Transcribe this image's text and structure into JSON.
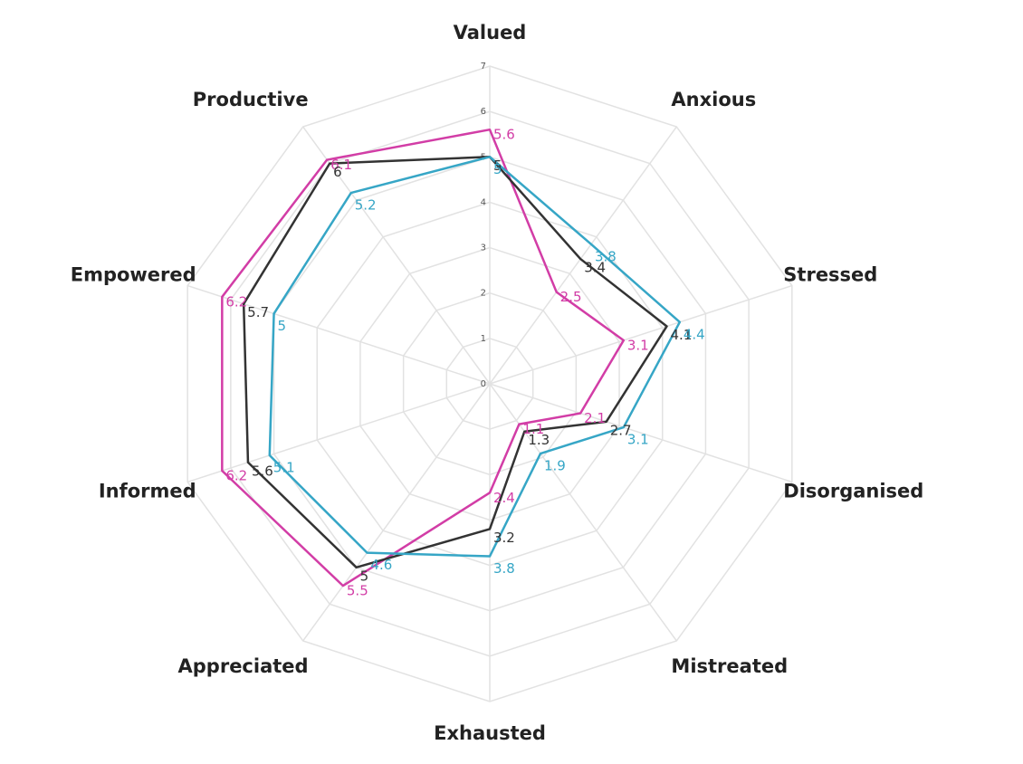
{
  "chart_data": {
    "type": "radar",
    "categories": [
      "Valued",
      "Anxious",
      "Stressed",
      "Disorganised",
      "Mistreated",
      "Exhausted",
      "Appreciated",
      "Informed",
      "Empowered",
      "Productive"
    ],
    "series": [
      {
        "color": "#d23da6",
        "values": [
          5.6,
          2.5,
          3.1,
          2.1,
          1.1,
          2.4,
          5.5,
          6.2,
          6.2,
          6.1
        ]
      },
      {
        "color": "#333333",
        "values": [
          5,
          3.4,
          4.1,
          2.7,
          1.3,
          3.2,
          5,
          5.6,
          5.7,
          6
        ]
      },
      {
        "color": "#36a6c6",
        "values": [
          5,
          3.8,
          4.4,
          3.1,
          1.9,
          3.8,
          4.6,
          5.1,
          5,
          5.2
        ]
      }
    ],
    "ylim": [
      0,
      7
    ],
    "yticks": [
      0,
      1,
      2,
      3,
      4,
      5,
      6,
      7
    ],
    "grid": true
  }
}
